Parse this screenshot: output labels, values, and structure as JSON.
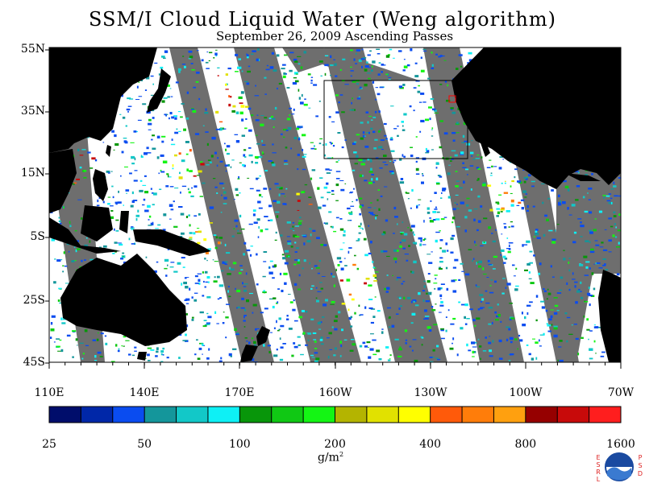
{
  "title": "SSM/I Cloud Liquid Water (Weng algorithm)",
  "subtitle": "September 26, 2009  Ascending Passes",
  "lat_labels": [
    "55N",
    "35N",
    "15N",
    "5S",
    "25S",
    "45S"
  ],
  "lon_labels": [
    "110E",
    "140E",
    "170E",
    "160W",
    "130W",
    "100W",
    "70W"
  ],
  "colorbar": {
    "colors": [
      "#000d6b",
      "#0027a8",
      "#0a4cf0",
      "#14969b",
      "#12c8c8",
      "#0ef0f5",
      "#08960a",
      "#10c814",
      "#14f514",
      "#b4b400",
      "#e1e100",
      "#ffff00",
      "#ff5a0a",
      "#ff7d0a",
      "#ffa00f",
      "#960000",
      "#c80a0a",
      "#ff1e1e"
    ],
    "labels": [
      "25",
      "50",
      "100",
      "200",
      "400",
      "800",
      "1600"
    ],
    "units": "g/m",
    "units_sup": "2"
  },
  "land_color": "#000000",
  "nodata_color": "#6e6e6e",
  "logo": {
    "left_letters": [
      "E",
      "S",
      "R",
      "L"
    ],
    "right_letters": [
      "P",
      "S",
      "D"
    ],
    "name": "NOAA"
  }
}
